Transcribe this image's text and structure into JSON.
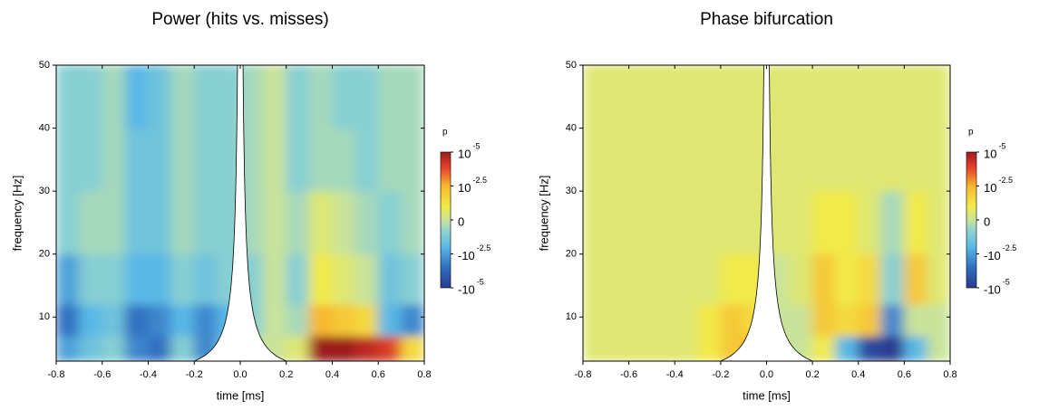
{
  "chart_data": [
    {
      "type": "heatmap",
      "title": "Power (hits vs. misses)",
      "xlabel": "time [ms]",
      "ylabel": "frequency [Hz]",
      "xlim": [
        -0.8,
        0.8
      ],
      "ylim": [
        3,
        50
      ],
      "xticks": [
        -0.8,
        -0.6,
        -0.4,
        -0.2,
        {
          "value": 0,
          "label": "0.0"
        },
        0.2,
        0.4,
        0.6,
        0.8
      ],
      "yticks": [
        10,
        20,
        30,
        40,
        50
      ],
      "x_bins": [
        -0.8,
        -0.7,
        -0.6,
        -0.5,
        -0.4,
        -0.3,
        -0.2,
        -0.1,
        0,
        0.1,
        0.2,
        0.3,
        0.4,
        0.5,
        0.6,
        0.7,
        0.8
      ],
      "y_bins": [
        3,
        7,
        12,
        20,
        30,
        40,
        50
      ],
      "z": [
        [
          -2.5,
          -1.5,
          -1,
          -3,
          -3.5,
          -1,
          -3,
          -1.5,
          0,
          0,
          0.5,
          5,
          5,
          4.5,
          4,
          1.5
        ],
        [
          -3.5,
          -2,
          -1.5,
          -3.5,
          -3,
          -2,
          -3,
          -2,
          -1,
          0,
          -0.5,
          2.5,
          2,
          1.5,
          -2,
          -3
        ],
        [
          -2.5,
          -1,
          -1,
          -2,
          -2,
          -1,
          -1.5,
          -1,
          -1,
          0,
          -1,
          1,
          0.5,
          0,
          -1.5,
          -1
        ],
        [
          -1,
          -0.5,
          -0.5,
          -1.5,
          -1.5,
          -0.5,
          -1,
          -1,
          -0.5,
          0,
          -0.5,
          0.5,
          0,
          -0.5,
          -1,
          -0.5
        ],
        [
          -1,
          -1,
          -0.5,
          -1.5,
          -1.5,
          -0.5,
          -1,
          -1,
          -0.5,
          0,
          -1,
          -0.5,
          -0.5,
          -1,
          -0.5,
          -0.5
        ],
        [
          -1,
          -1,
          -0.5,
          -2,
          -1.5,
          -0.5,
          -1,
          -1,
          -0.5,
          0,
          -1,
          -0.5,
          -1,
          -1,
          -0.5,
          -0.5
        ]
      ],
      "colorbar_title": "p",
      "colorbar_ticks": [
        {
          "value": 5,
          "label": "10",
          "exponent": "-5"
        },
        {
          "value": 2.5,
          "label": "10",
          "exponent": "-2.5"
        },
        0,
        {
          "value": -2.5,
          "label": "-10",
          "exponent": "-2.5"
        },
        {
          "value": -5,
          "label": "-10",
          "exponent": "-5"
        }
      ],
      "colorscale": [
        [
          -5,
          "#2b3a8f"
        ],
        [
          -3.5,
          "#2f6fc0"
        ],
        [
          -2,
          "#5ab8e6"
        ],
        [
          -0.8,
          "#8fd3cf"
        ],
        [
          0,
          "#c9e39a"
        ],
        [
          1,
          "#f2ea4a"
        ],
        [
          2.5,
          "#f7b72e"
        ],
        [
          3.8,
          "#e8442a"
        ],
        [
          5,
          "#9c1b1b"
        ]
      ]
    },
    {
      "type": "heatmap",
      "title": "Phase bifurcation",
      "xlabel": "time [ms]",
      "ylabel": "frequency [Hz]",
      "xlim": [
        -0.8,
        0.8
      ],
      "ylim": [
        3,
        50
      ],
      "xticks": [
        -0.8,
        -0.6,
        -0.4,
        -0.2,
        {
          "value": 0,
          "label": "0.0"
        },
        0.2,
        0.4,
        0.6,
        0.8
      ],
      "yticks": [
        10,
        20,
        30,
        40,
        50
      ],
      "x_bins": [
        -0.8,
        -0.7,
        -0.6,
        -0.5,
        -0.4,
        -0.3,
        -0.2,
        -0.1,
        0,
        0.1,
        0.2,
        0.3,
        0.4,
        0.5,
        0.6,
        0.7,
        0.8
      ],
      "y_bins": [
        3,
        7,
        12,
        20,
        30,
        40,
        50
      ],
      "z": [
        [
          0.5,
          0.5,
          0.5,
          0.5,
          0.5,
          1,
          2,
          2.5,
          0,
          0,
          1,
          -2,
          -4.5,
          -5,
          -2,
          0
        ],
        [
          0.5,
          0.5,
          0.5,
          0.5,
          0.5,
          1,
          2,
          1.5,
          0,
          0,
          2,
          1.5,
          2,
          -3,
          0,
          0
        ],
        [
          0.5,
          0.5,
          0.5,
          0.5,
          0.5,
          0.5,
          1,
          1,
          0,
          0.5,
          2,
          1,
          1.5,
          -1,
          2,
          0.5
        ],
        [
          0.5,
          0.5,
          0.5,
          0.5,
          0.5,
          0.5,
          0.5,
          0.5,
          0.5,
          0.5,
          1,
          1,
          0.5,
          -0.5,
          1,
          0.5
        ],
        [
          0.5,
          0.5,
          0.5,
          0.5,
          0.5,
          0.5,
          0.5,
          0.5,
          0.5,
          0.5,
          0.5,
          0.5,
          0.5,
          0.5,
          0.5,
          0.5
        ],
        [
          0.5,
          0.5,
          0.5,
          0.5,
          0.5,
          0.5,
          0.5,
          0.5,
          0.5,
          0.5,
          0.5,
          0.5,
          0.5,
          0.5,
          0.5,
          0.5
        ]
      ],
      "colorbar_title": "p",
      "colorbar_ticks": [
        {
          "value": 5,
          "label": "10",
          "exponent": "-5"
        },
        {
          "value": 2.5,
          "label": "10",
          "exponent": "-2.5"
        },
        0,
        {
          "value": -2.5,
          "label": "-10",
          "exponent": "-2.5"
        },
        {
          "value": -5,
          "label": "-10",
          "exponent": "-5"
        }
      ],
      "colorscale": [
        [
          -5,
          "#2b3a8f"
        ],
        [
          -3.5,
          "#2f6fc0"
        ],
        [
          -2,
          "#5ab8e6"
        ],
        [
          -0.8,
          "#8fd3cf"
        ],
        [
          0,
          "#c9e39a"
        ],
        [
          1,
          "#f2ea4a"
        ],
        [
          2.5,
          "#f7b72e"
        ],
        [
          3.8,
          "#e8442a"
        ],
        [
          5,
          "#9c1b1b"
        ]
      ]
    }
  ]
}
